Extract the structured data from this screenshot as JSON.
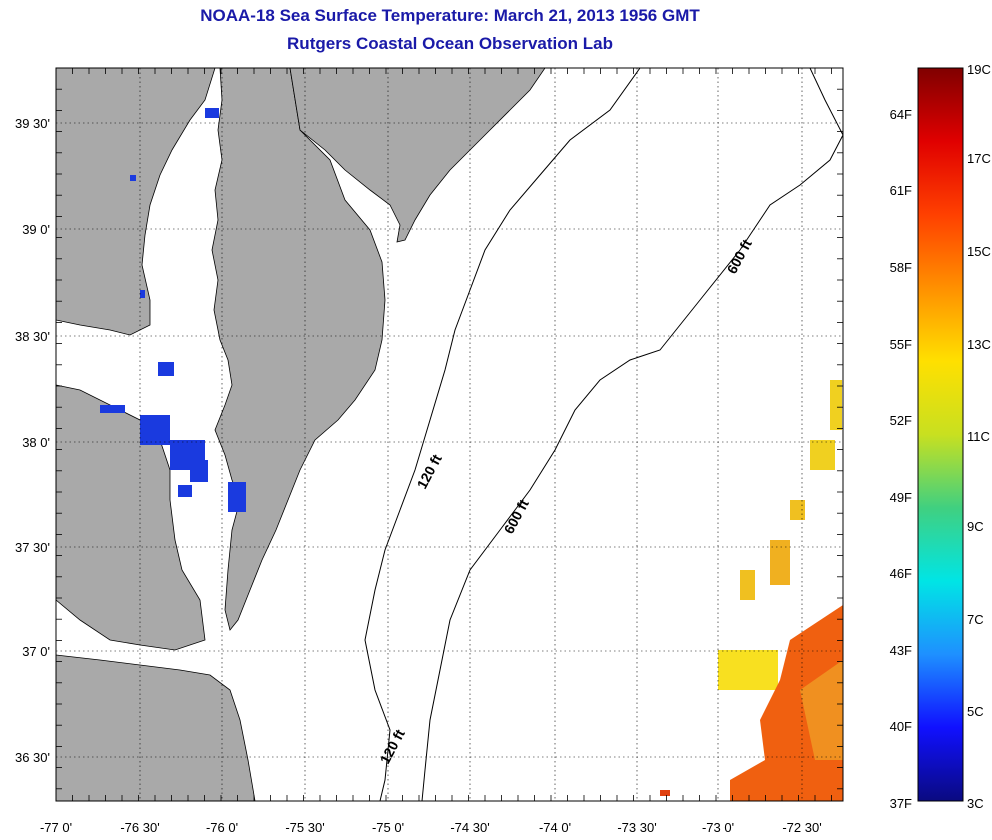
{
  "title_line1": "NOAA-18 Sea Surface Temperature:  March 21, 2013 1956 GMT",
  "title_line2": "Rutgers Coastal Ocean Observation Lab",
  "latitude_labels": [
    "39 30'",
    "39 0'",
    "38 30'",
    "38 0'",
    "37 30'",
    "37 0'",
    "36 30'"
  ],
  "longitude_labels": [
    "-77 0'",
    "-76 30'",
    "-76 0'",
    "-75 30'",
    "-75 0'",
    "-74 30'",
    "-74 0'",
    "-73 30'",
    "-73 0'",
    "-72 30'"
  ],
  "contour_labels": [
    "120 ft",
    "600 ft",
    "600 ft",
    "120 ft"
  ],
  "colorbar": {
    "fahrenheit_labels": [
      "64F",
      "61F",
      "58F",
      "55F",
      "52F",
      "49F",
      "46F",
      "43F",
      "40F",
      "37F"
    ],
    "celsius_labels": [
      "19C",
      "17C",
      "15C",
      "13C",
      "11C",
      "9C",
      "7C",
      "5C",
      "3C"
    ],
    "colors": [
      "#0a0a80",
      "#1010ff",
      "#1e90ff",
      "#00e5e5",
      "#40d080",
      "#c8e020",
      "#ffe000",
      "#ff9000",
      "#ff4000",
      "#e00000",
      "#800000"
    ]
  },
  "colors": {
    "land": "#a9a9a9",
    "water": "#ffffff",
    "cold_water": "#1a3adf",
    "warm_water_orange": "#f06010",
    "warm_water_yellow": "#f0d020",
    "title": "#1a1aa8"
  }
}
